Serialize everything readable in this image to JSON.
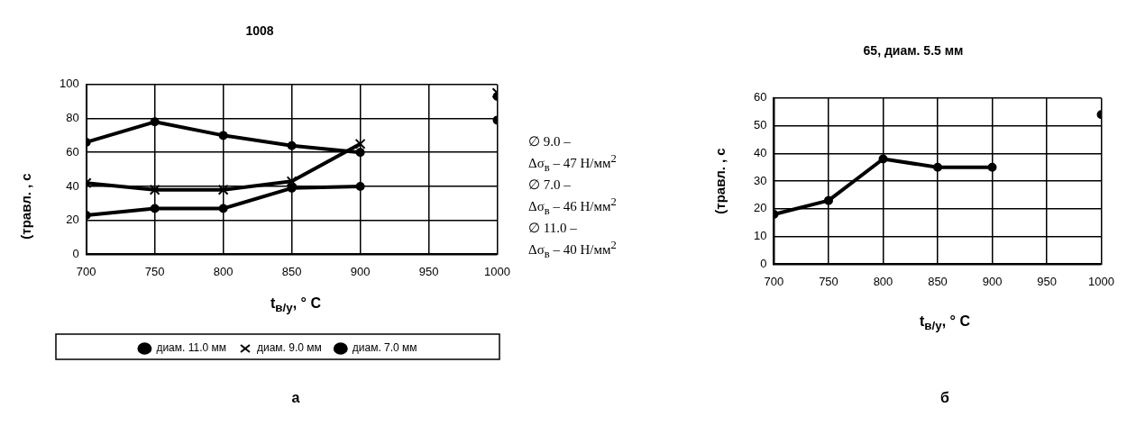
{
  "chart_data": [
    {
      "type": "line",
      "title": "1008",
      "xlabel": "t$_{в/у}$, ° С",
      "ylabel": "(травл. , с",
      "x": [
        700,
        750,
        800,
        850,
        900,
        950,
        1000
      ],
      "xlim": [
        700,
        1000
      ],
      "xticks": [
        700,
        750,
        800,
        850,
        900,
        950,
        1000
      ],
      "ylim": [
        0,
        100
      ],
      "yticks": [
        0,
        20,
        40,
        60,
        80,
        100
      ],
      "grid": true,
      "legend": "bottom",
      "line_style": "solid",
      "series": [
        {
          "name": "диам. 11.0 мм",
          "color": "#000000",
          "marker": "circle",
          "values": [
            66,
            78,
            70,
            64,
            60,
            null,
            93
          ]
        },
        {
          "name": "диам. 9.0 мм",
          "color": "#000000",
          "marker": "cross",
          "values": [
            42,
            38,
            38,
            43,
            65,
            null,
            95
          ]
        },
        {
          "name": "диам. 7.0 мм",
          "color": "#000000",
          "marker": "circle",
          "values": [
            23,
            27,
            27,
            39,
            40,
            null,
            79
          ]
        }
      ],
      "annotations": [
        "∅ 9.0 –\nΔσ$_{в}$ – 47 Н/мм$^{2}$",
        "∅ 7.0 –\nΔσ$_{в}$ – 46 Н/мм$^{2}$",
        "∅ 11.0 –\nΔσ$_{в}$ – 40 Н/мм$^{2}$",
        "а"
      ]
    },
    {
      "type": "line",
      "title": "65, диам. 5.5 мм",
      "xlabel": "t$_{в/у}$, ° С",
      "ylabel": "(травл. , с",
      "x": [
        700,
        750,
        800,
        850,
        900,
        950,
        1000
      ],
      "xlim": [
        700,
        1000
      ],
      "xticks": [
        700,
        750,
        800,
        850,
        900,
        950,
        1000
      ],
      "ylim": [
        0,
        60
      ],
      "yticks": [
        0,
        10,
        20,
        30,
        40,
        50,
        60
      ],
      "grid": true,
      "line_style": "solid",
      "series": [
        {
          "color": "#000000",
          "marker": "circle",
          "values": [
            18,
            23,
            38,
            35,
            35,
            null,
            54
          ]
        }
      ],
      "annotations": [
        "б"
      ]
    }
  ]
}
